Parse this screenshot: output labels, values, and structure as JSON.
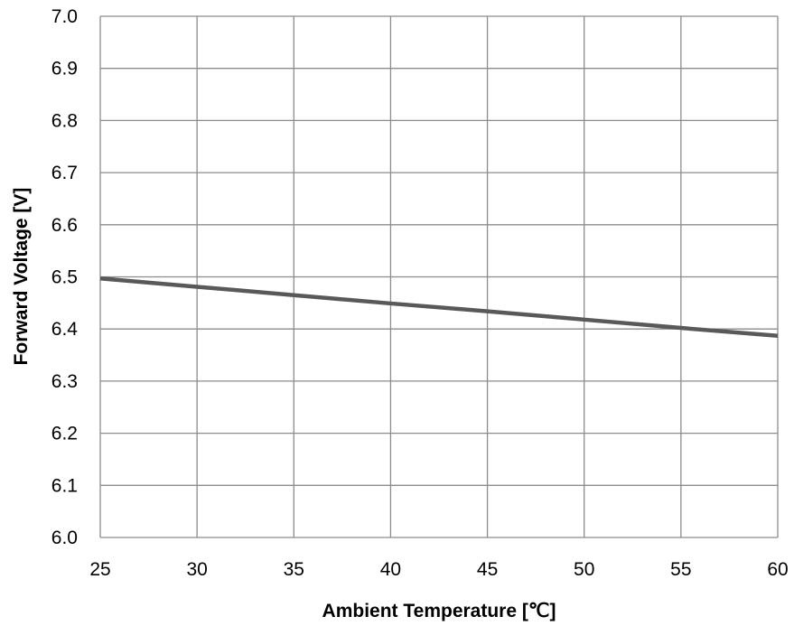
{
  "chart_data": {
    "type": "line",
    "title": "",
    "xlabel": "Ambient Temperature [℃]",
    "ylabel": "Forward Voltage [V]",
    "xlim": [
      25,
      60
    ],
    "ylim": [
      6.0,
      7.0
    ],
    "x_ticks": [
      "25",
      "30",
      "35",
      "40",
      "45",
      "50",
      "55",
      "60"
    ],
    "y_ticks": [
      "6.0",
      "6.1",
      "6.2",
      "6.3",
      "6.4",
      "6.5",
      "6.6",
      "6.7",
      "6.8",
      "6.9",
      "7.0"
    ],
    "grid": true,
    "legend": "none",
    "colors": {
      "line": "#595959",
      "grid": "#8c8c8c",
      "text": "#000000"
    },
    "series": [
      {
        "x": [
          25,
          30,
          35,
          40,
          45,
          50,
          55,
          60
        ],
        "y": [
          6.497,
          6.481,
          6.465,
          6.449,
          6.434,
          6.418,
          6.402,
          6.387
        ]
      }
    ]
  }
}
